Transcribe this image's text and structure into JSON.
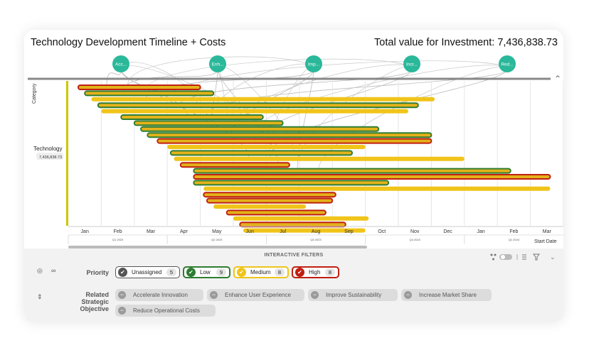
{
  "header": {
    "title": "Technology Development Timeline + Costs",
    "total": "Total value for Investment: 7,436,838.73"
  },
  "objectives_nodes": [
    "Acc...",
    "Enh...",
    "Imp...",
    "Incr...",
    "Red..."
  ],
  "colors": {
    "High": "#c01f10",
    "Medium": "#f0c419",
    "Low": "#2e7d32",
    "Unassigned": "#555555",
    "node": "#2bb89a",
    "track": "#c8c800"
  },
  "sidebar": {
    "category_label": "Category",
    "technology_label": "Technology",
    "technology_value": "7,436,838.73"
  },
  "axis": {
    "months": [
      "Jan",
      "Feb",
      "Mar",
      "Apr",
      "May",
      "Jun",
      "Jul",
      "Aug",
      "Sep",
      "Oct",
      "Nov",
      "Dec",
      "Jan",
      "Feb",
      "Mar"
    ],
    "quarters": [
      "Q1 2023",
      "Q2 2023",
      "Q3 2023",
      "Q4 2023",
      "Q1 2024"
    ],
    "start_date_label": "Start Date"
  },
  "timeline_bars": [
    {
      "priority": "High",
      "start": 0.3,
      "end": 4.0
    },
    {
      "priority": "Low",
      "start": 0.5,
      "end": 4.4
    },
    {
      "priority": "Medium",
      "start": 0.7,
      "end": 11.1
    },
    {
      "priority": "Low",
      "start": 0.9,
      "end": 10.6
    },
    {
      "priority": "Medium",
      "start": 1.0,
      "end": 10.3
    },
    {
      "priority": "Low",
      "start": 1.6,
      "end": 5.9
    },
    {
      "priority": "Low",
      "start": 2.0,
      "end": 6.5
    },
    {
      "priority": "Low",
      "start": 2.2,
      "end": 9.4
    },
    {
      "priority": "Low",
      "start": 2.4,
      "end": 11.0
    },
    {
      "priority": "High",
      "start": 2.7,
      "end": 11.0
    },
    {
      "priority": "Medium",
      "start": 3.0,
      "end": 9.0
    },
    {
      "priority": "Low",
      "start": 3.1,
      "end": 8.6
    },
    {
      "priority": "Medium",
      "start": 3.2,
      "end": 12.0
    },
    {
      "priority": "High",
      "start": 3.4,
      "end": 6.7
    },
    {
      "priority": "Low",
      "start": 3.8,
      "end": 13.4
    },
    {
      "priority": "High",
      "start": 3.8,
      "end": 14.6
    },
    {
      "priority": "Low",
      "start": 3.8,
      "end": 9.7
    },
    {
      "priority": "Medium",
      "start": 4.1,
      "end": 14.6
    },
    {
      "priority": "High",
      "start": 4.1,
      "end": 8.1
    },
    {
      "priority": "High",
      "start": 4.2,
      "end": 8.0
    },
    {
      "priority": "Medium",
      "start": 4.4,
      "end": 7.2
    },
    {
      "priority": "High",
      "start": 4.8,
      "end": 7.8
    },
    {
      "priority": "Medium",
      "start": 5.0,
      "end": 9.1
    },
    {
      "priority": "High",
      "start": 5.2,
      "end": 8.4
    },
    {
      "priority": "Medium",
      "start": 5.3,
      "end": 9.0
    }
  ],
  "filters": {
    "title": "INTERACTIVE FILTERS",
    "priority_label": "Priority",
    "priority_chips": [
      {
        "label": "Unassigned",
        "count": "5"
      },
      {
        "label": "Low",
        "count": "9"
      },
      {
        "label": "Medium",
        "count": "8"
      },
      {
        "label": "High",
        "count": "8"
      }
    ],
    "objective_label_1": "Related Strategic",
    "objective_label_2": "Objective",
    "objective_chips": [
      "Accelerate Innovation",
      "Enhance User Experience",
      "Improve Sustainability",
      "Increase Market Share",
      "Reduce Operational Costs"
    ]
  }
}
